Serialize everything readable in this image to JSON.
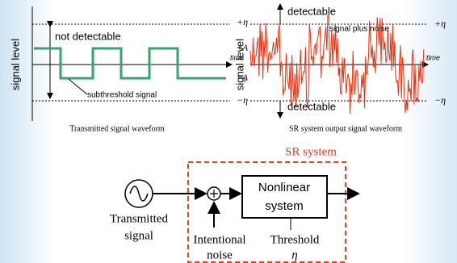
{
  "left_panel": {
    "y_axis_label": "signal level",
    "annotation": "not detectable",
    "signal_label": "subthreshold signal",
    "plus_eta": "+η",
    "plus_a": "+A",
    "time": "time",
    "minus_a": "−A",
    "minus_eta": "−η",
    "caption": "Transmitted signal waveform"
  },
  "right_panel": {
    "y_axis_label": "signal level",
    "top_label": "detectable",
    "signal_label": "signal plus noise",
    "plus_eta": "+η",
    "time": "time",
    "minus_eta": "−η",
    "bottom_label": "detectable",
    "caption": "SR system output signal waveform"
  },
  "diagram": {
    "system_title": "SR system",
    "source": [
      "Transmitted",
      "signal"
    ],
    "block": [
      "Nonlinear",
      "system"
    ],
    "noise": [
      "Intentional",
      "noise"
    ],
    "threshold": [
      "Threshold",
      "η"
    ]
  }
}
